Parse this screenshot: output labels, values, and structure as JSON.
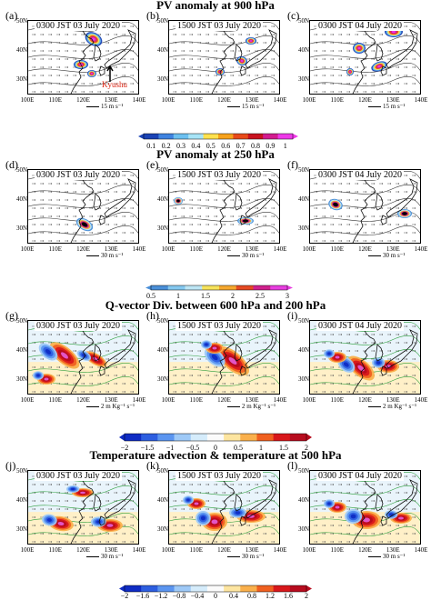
{
  "rows": [
    {
      "title": "PV anomaly at 900 hPa",
      "panels": [
        {
          "label": "(a)",
          "time": "0300 JST 03 July 2020"
        },
        {
          "label": "(b)",
          "time": "1500 JST 03 July 2020"
        },
        {
          "label": "(c)",
          "time": "0300 JST 04 July 2020"
        }
      ],
      "vector_scale": "15 m s⁻¹",
      "annotation": "Kyushu",
      "colorbar": [
        "0.1",
        "0.2",
        "0.3",
        "0.4",
        "0.5",
        "0.6",
        "0.7",
        "0.8",
        "0.9",
        "1"
      ],
      "style": "pv"
    },
    {
      "title": "PV anomaly at 250 hPa",
      "panels": [
        {
          "label": "(d)",
          "time": "0300 JST 03 July 2020"
        },
        {
          "label": "(e)",
          "time": "1500 JST 03 July 2020"
        },
        {
          "label": "(f)",
          "time": "0300 JST 04 July 2020"
        }
      ],
      "vector_scale": "30 m s⁻¹",
      "colorbar": [
        "0.5",
        "1",
        "1.5",
        "2",
        "2.5",
        "3"
      ],
      "style": "pv"
    },
    {
      "title": "Q-vector Div. between 600 hPa and 200 hPa",
      "panels": [
        {
          "label": "(g)",
          "time": "0300 JST 03 July 2020"
        },
        {
          "label": "(h)",
          "time": "1500 JST 03 July 2020"
        },
        {
          "label": "(i)",
          "time": "0300 JST 04 July 2020"
        }
      ],
      "vector_scale": "2 m Kg⁻¹ s⁻¹",
      "colorbar": [
        "−2",
        "−1.5",
        "−1",
        "−0.5",
        "0",
        "0.5",
        "1",
        "1.5",
        "2"
      ],
      "style": "div"
    },
    {
      "title": "Temperature advection & temperature at 500 hPa",
      "panels": [
        {
          "label": "(j)",
          "time": "0300 JST 03 July 2020"
        },
        {
          "label": "(k)",
          "time": "1500 JST 03 July 2020"
        },
        {
          "label": "(l)",
          "time": "0300 JST 04 July 2020"
        }
      ],
      "vector_scale": "30 m s⁻¹",
      "colorbar": [
        "−2",
        "−1.6",
        "−1.2",
        "−0.8",
        "−0.4",
        "0",
        "0.4",
        "0.8",
        "1.2",
        "1.6",
        "2"
      ],
      "style": "div"
    }
  ],
  "axes": {
    "lat": [
      "50N",
      "40N",
      "30N"
    ],
    "lon": [
      "100E",
      "110E",
      "120E",
      "130E",
      "140E"
    ]
  }
}
